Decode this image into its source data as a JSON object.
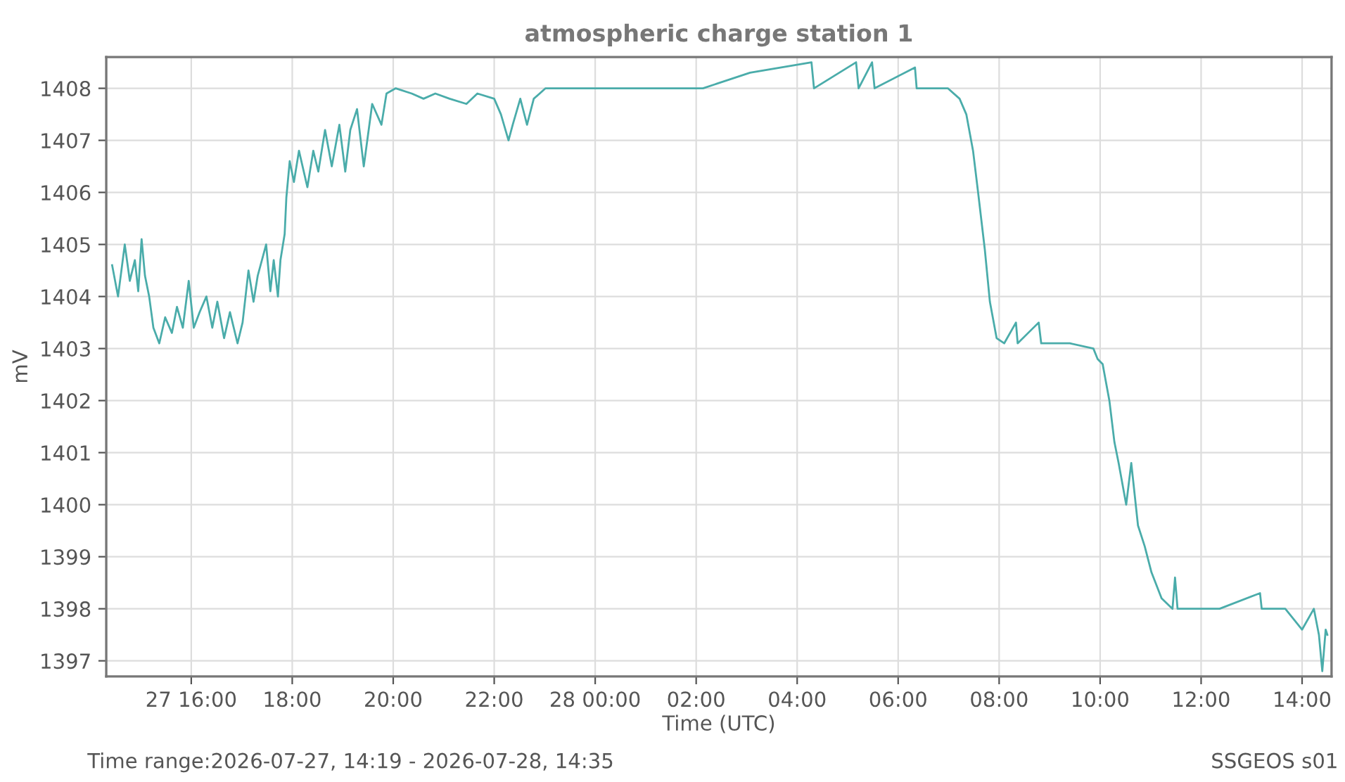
{
  "chart_data": {
    "type": "line",
    "title": "atmospheric charge station 1",
    "xlabel": "Time (UTC)",
    "ylabel": "mV",
    "annotations": [
      "Time range:2026-07-27, 14:19 - 2026-07-28, 14:35",
      "SSGEOS s01"
    ],
    "x": [
      "2026-07-27T14:26",
      "2026-07-27T14:33",
      "2026-07-27T14:41",
      "2026-07-27T14:47",
      "2026-07-27T14:53",
      "2026-07-27T14:57",
      "2026-07-27T15:01",
      "2026-07-27T15:05",
      "2026-07-27T15:10",
      "2026-07-27T15:15",
      "2026-07-27T15:22",
      "2026-07-27T15:29",
      "2026-07-27T15:37",
      "2026-07-27T15:43",
      "2026-07-27T15:50",
      "2026-07-27T15:57",
      "2026-07-27T16:03",
      "2026-07-27T16:10",
      "2026-07-27T16:18",
      "2026-07-27T16:25",
      "2026-07-27T16:31",
      "2026-07-27T16:39",
      "2026-07-27T16:46",
      "2026-07-27T16:55",
      "2026-07-27T17:01",
      "2026-07-27T17:08",
      "2026-07-27T17:14",
      "2026-07-27T17:19",
      "2026-07-27T17:29",
      "2026-07-27T17:34",
      "2026-07-27T17:38",
      "2026-07-27T17:43",
      "2026-07-27T17:46",
      "2026-07-27T17:51",
      "2026-07-27T17:53",
      "2026-07-27T17:57",
      "2026-07-27T18:02",
      "2026-07-27T18:08",
      "2026-07-27T18:18",
      "2026-07-27T18:25",
      "2026-07-27T18:31",
      "2026-07-27T18:39",
      "2026-07-27T18:47",
      "2026-07-27T18:56",
      "2026-07-27T19:03",
      "2026-07-27T19:09",
      "2026-07-27T19:17",
      "2026-07-27T19:25",
      "2026-07-27T19:35",
      "2026-07-27T19:46",
      "2026-07-27T19:52",
      "2026-07-27T20:03",
      "2026-07-27T20:22",
      "2026-07-27T20:36",
      "2026-07-27T20:50",
      "2026-07-27T21:07",
      "2026-07-27T21:27",
      "2026-07-27T21:40",
      "2026-07-27T22:00",
      "2026-07-27T22:08",
      "2026-07-27T22:17",
      "2026-07-27T22:22",
      "2026-07-27T22:31",
      "2026-07-27T22:39",
      "2026-07-27T22:47",
      "2026-07-27T23:01",
      "2026-07-27T23:38",
      "2026-07-28T00:06",
      "2026-07-28T01:01",
      "2026-07-28T02:08",
      "2026-07-28T03:04",
      "2026-07-28T04:17",
      "2026-07-28T04:20",
      "2026-07-28T05:10",
      "2026-07-28T05:13",
      "2026-07-28T05:29",
      "2026-07-28T05:32",
      "2026-07-28T06:20",
      "2026-07-28T06:22",
      "2026-07-28T06:59",
      "2026-07-28T07:13",
      "2026-07-28T07:21",
      "2026-07-28T07:29",
      "2026-07-28T07:35",
      "2026-07-28T07:43",
      "2026-07-28T07:49",
      "2026-07-28T07:57",
      "2026-07-28T08:06",
      "2026-07-28T08:20",
      "2026-07-28T08:22",
      "2026-07-28T08:47",
      "2026-07-28T08:50",
      "2026-07-28T09:24",
      "2026-07-28T09:52",
      "2026-07-28T09:57",
      "2026-07-28T10:03",
      "2026-07-28T10:11",
      "2026-07-28T10:17",
      "2026-07-28T10:22",
      "2026-07-28T10:31",
      "2026-07-28T10:37",
      "2026-07-28T10:45",
      "2026-07-28T10:53",
      "2026-07-28T11:01",
      "2026-07-28T11:13",
      "2026-07-28T11:26",
      "2026-07-28T11:29",
      "2026-07-28T11:32",
      "2026-07-28T12:22",
      "2026-07-28T13:10",
      "2026-07-28T13:12",
      "2026-07-28T13:40",
      "2026-07-28T14:00",
      "2026-07-28T14:14",
      "2026-07-28T14:20",
      "2026-07-28T14:24",
      "2026-07-28T14:28",
      "2026-07-28T14:30"
    ],
    "series": [
      {
        "color": "#4aacaa",
        "values": [
          1404.6,
          1404.0,
          1405.0,
          1404.3,
          1404.7,
          1404.1,
          1405.1,
          1404.4,
          1404.0,
          1403.4,
          1403.1,
          1403.6,
          1403.3,
          1403.8,
          1403.4,
          1404.3,
          1403.4,
          1403.7,
          1404.0,
          1403.4,
          1403.9,
          1403.2,
          1403.7,
          1403.1,
          1403.5,
          1404.5,
          1403.9,
          1404.4,
          1405.0,
          1404.1,
          1404.7,
          1404.0,
          1404.7,
          1405.2,
          1405.9,
          1406.6,
          1406.2,
          1406.8,
          1406.1,
          1406.8,
          1406.4,
          1407.2,
          1406.5,
          1407.3,
          1406.4,
          1407.2,
          1407.6,
          1406.5,
          1407.7,
          1407.3,
          1407.9,
          1408.0,
          1407.9,
          1407.8,
          1407.9,
          1407.8,
          1407.7,
          1407.9,
          1407.8,
          1407.5,
          1407.0,
          1407.3,
          1407.8,
          1407.3,
          1407.8,
          1408.0,
          1408.0,
          1408.0,
          1408.0,
          1408.0,
          1408.3,
          1408.5,
          1408.0,
          1408.5,
          1408.0,
          1408.5,
          1408.0,
          1408.4,
          1408.0,
          1408.0,
          1407.8,
          1407.5,
          1406.8,
          1406.0,
          1404.9,
          1403.9,
          1403.2,
          1403.1,
          1403.5,
          1403.1,
          1403.5,
          1403.1,
          1403.1,
          1403.0,
          1402.8,
          1402.7,
          1402.0,
          1401.2,
          1400.8,
          1400.0,
          1400.8,
          1399.6,
          1399.2,
          1398.7,
          1398.2,
          1398.0,
          1398.6,
          1398.0,
          1398.0,
          1398.3,
          1398.0,
          1398.0,
          1397.6,
          1398.0,
          1397.5,
          1396.8,
          1397.6,
          1397.5
        ]
      }
    ],
    "xlim": [
      "2026-07-27T14:19",
      "2026-07-28T14:35"
    ],
    "ylim": [
      1396.7,
      1408.6
    ],
    "xticks": [
      {
        "value": "2026-07-27T16:00",
        "label": "27 16:00"
      },
      {
        "value": "2026-07-27T18:00",
        "label": "18:00"
      },
      {
        "value": "2026-07-27T20:00",
        "label": "20:00"
      },
      {
        "value": "2026-07-27T22:00",
        "label": "22:00"
      },
      {
        "value": "2026-07-28T00:00",
        "label": "28 00:00"
      },
      {
        "value": "2026-07-28T02:00",
        "label": "02:00"
      },
      {
        "value": "2026-07-28T04:00",
        "label": "04:00"
      },
      {
        "value": "2026-07-28T06:00",
        "label": "06:00"
      },
      {
        "value": "2026-07-28T08:00",
        "label": "08:00"
      },
      {
        "value": "2026-07-28T10:00",
        "label": "10:00"
      },
      {
        "value": "2026-07-28T12:00",
        "label": "12:00"
      },
      {
        "value": "2026-07-28T14:00",
        "label": "14:00"
      }
    ],
    "yticks": [
      1397,
      1398,
      1399,
      1400,
      1401,
      1402,
      1403,
      1404,
      1405,
      1406,
      1407,
      1408
    ],
    "grid": true,
    "marker": "none",
    "line_style": "solid"
  }
}
